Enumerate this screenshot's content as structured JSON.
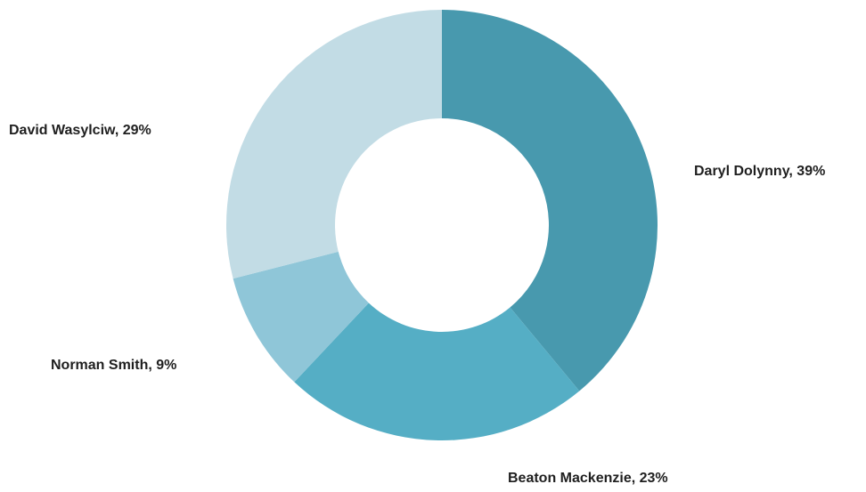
{
  "chart_data": {
    "type": "pie",
    "variant": "donut",
    "title": "",
    "slices": [
      {
        "name": "Daryl Dolynny",
        "value": 39,
        "label": "Daryl Dolynny, 39%",
        "color": "#4899AE"
      },
      {
        "name": "Beaton Mackenzie",
        "value": 23,
        "label": "Beaton Mackenzie, 23%",
        "color": "#55AEC5"
      },
      {
        "name": "Norman Smith",
        "value": 9,
        "label": "Norman Smith, 9%",
        "color": "#8FC6D8"
      },
      {
        "name": "David Wasylciw",
        "value": 29,
        "label": "David Wasylciw, 29%",
        "color": "#C2DCE5"
      }
    ],
    "legend": "none",
    "label_position": "outside"
  }
}
